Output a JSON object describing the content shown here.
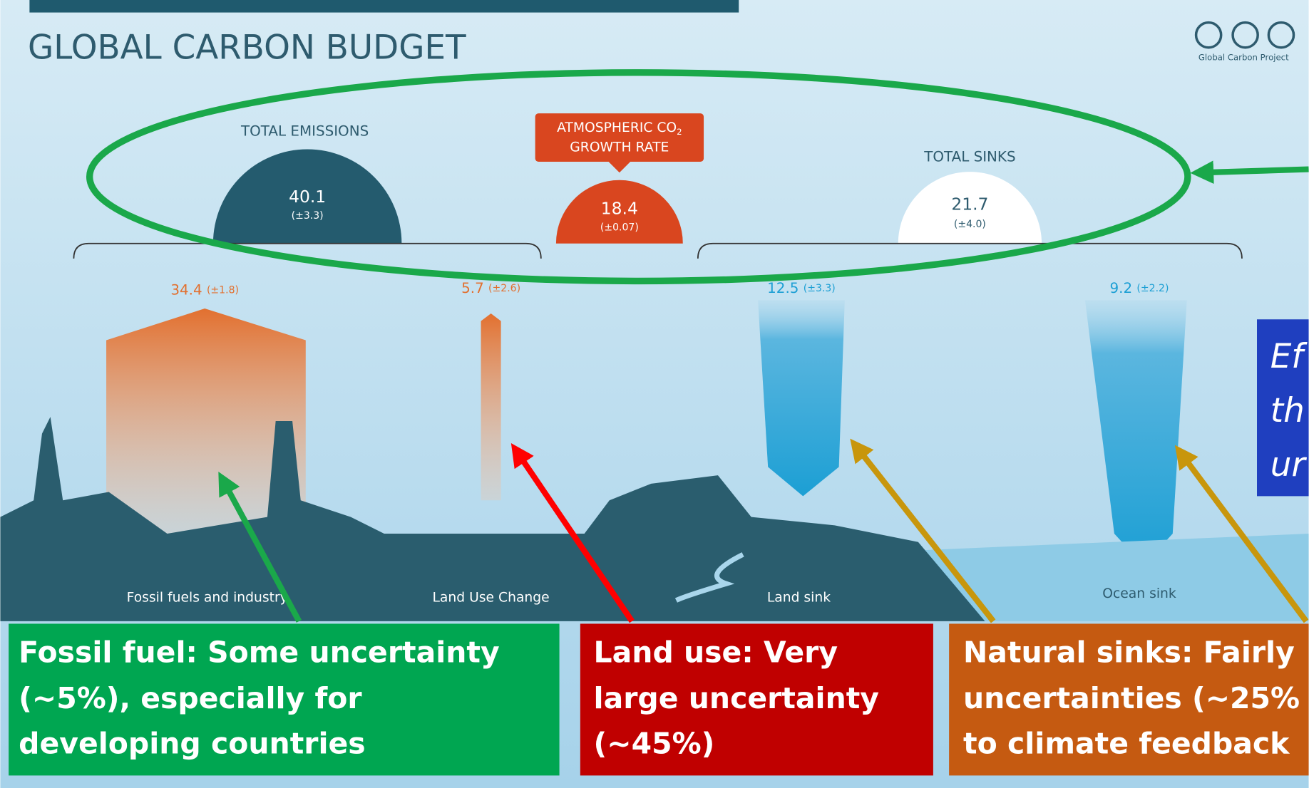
{
  "header": {
    "title": "GLOBAL CARBON BUDGET",
    "credit": "Global Carbon Project"
  },
  "summary": {
    "emissions": {
      "label": "TOTAL EMISSIONS",
      "value": "40.1",
      "uncertainty": "(±3.3)"
    },
    "atmosphere": {
      "label": [
        "ATMOSPHERIC CO",
        "2",
        "GROWTH RATE"
      ],
      "value": "18.4",
      "uncertainty": "(±0.07)"
    },
    "sinks": {
      "label": "TOTAL SINKS",
      "value": "21.7",
      "uncertainty": "(±4.0)"
    }
  },
  "components": [
    {
      "name": "Fossil fuels and industry",
      "value": "34.4",
      "uncertainty": "(±1.8)"
    },
    {
      "name": "Land Use Change",
      "value": "5.7",
      "uncertainty": "(±2.6)"
    },
    {
      "name": "Land sink",
      "value": "12.5",
      "uncertainty": "(±3.3)"
    },
    {
      "name": "Ocean sink",
      "value": "9.2",
      "uncertainty": "(±2.2)"
    }
  ],
  "callouts": {
    "fossil": [
      "Fossil fuel: Some uncertainty",
      "(~5%), especially for",
      "developing countries"
    ],
    "land_use": [
      "Land use: Very",
      "large  uncertainty",
      "(~45%)"
    ],
    "sinks": [
      "Natural sinks: Fairly",
      "uncertainties (~25%",
      "to climate feedback"
    ],
    "side": [
      "Ef",
      "th",
      "ur"
    ]
  }
}
